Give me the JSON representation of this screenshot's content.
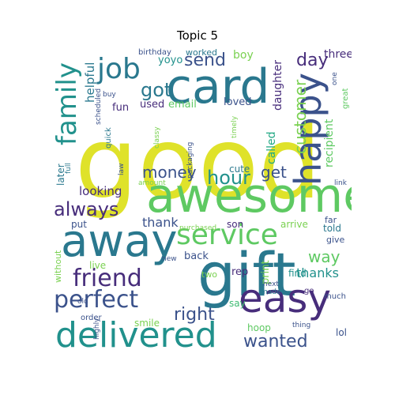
{
  "title": "Topic 5",
  "words": {
    "good": "good",
    "card": "card",
    "awesome": "awesome",
    "gift": "gift",
    "away": "away",
    "easy": "easy",
    "delivered": "delivered",
    "service": "service",
    "happy": "happy",
    "family": "family",
    "job": "job",
    "perfect": "perfect",
    "friend": "friend",
    "always": "always",
    "hour": "hour",
    "wanted": "wanted",
    "right": "right",
    "money": "money",
    "customer": "customer",
    "got": "got",
    "send": "send",
    "day": "day",
    "get": "get",
    "way": "way",
    "thanks": "thanks",
    "looking": "looking",
    "thank": "thank",
    "helpful": "helpful",
    "three": "three",
    "recipient": "recipient",
    "called": "called",
    "daughter": "daughter",
    "yoyo": "yoyo",
    "boy": "boy",
    "fun": "fun",
    "used": "used",
    "email": "email",
    "loved": "loved",
    "cute": "cute",
    "son": "son",
    "put": "put",
    "arrive": "arrive",
    "told": "told",
    "give": "give",
    "far": "far",
    "back": "back",
    "rep": "rep",
    "find": "find",
    "print": "print",
    "say": "say",
    "hoop": "hoop",
    "smile": "smile",
    "lol": "lol",
    "later": "later",
    "full": "full",
    "without": "without",
    "live": "live",
    "two": "two",
    "new": "new",
    "old": "old",
    "order": "order",
    "highly": "highly",
    "buy": "buy",
    "quick": "quick",
    "law": "law",
    "amount": "amount",
    "purchased": "purchased",
    "made": "made",
    "next": "next",
    "go": "go",
    "much": "much",
    "thing": "thing",
    "great": "great",
    "one": "one",
    "link": "link",
    "birthday": "birthday",
    "worked": "worked",
    "scheduled": "scheduled",
    "packaging": "packaging",
    "classy": "classy",
    "timely": "timely"
  },
  "colors": {
    "yellow": "#dfe22a",
    "teal": "#2a788e",
    "green": "#5ec962",
    "purple": "#472d7b",
    "blue": "#3b528b",
    "seagreen": "#21918c",
    "lightgreen": "#7ad151",
    "cyan": "#22a884",
    "lightblue": "#3fbc73"
  }
}
